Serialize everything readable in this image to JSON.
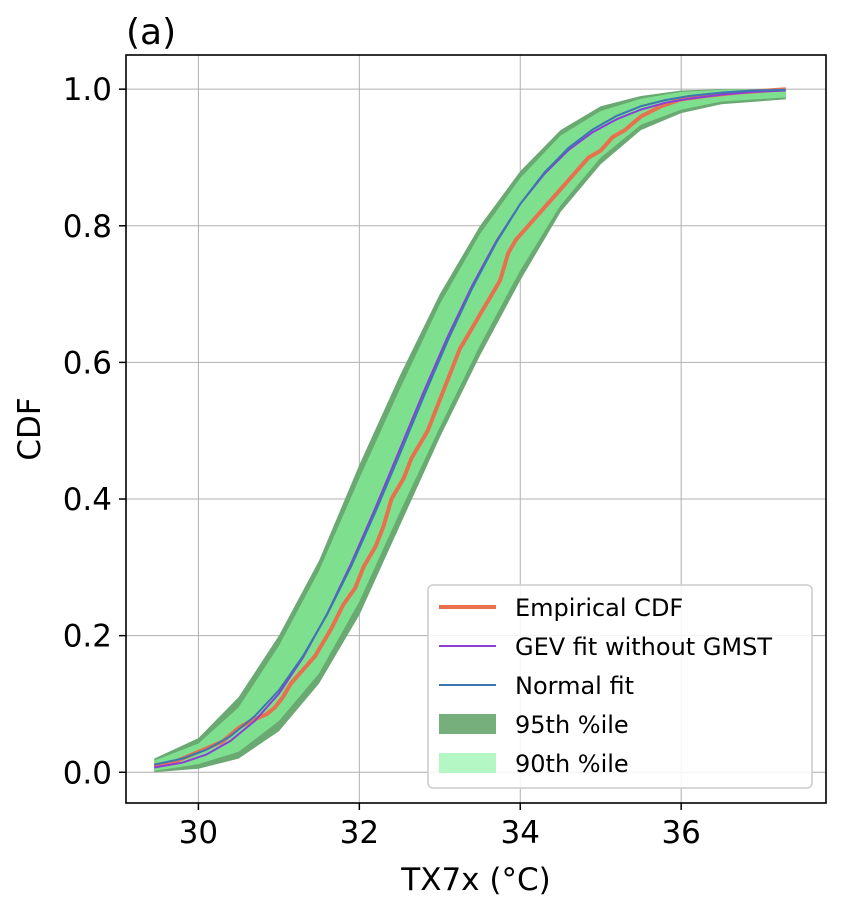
{
  "chart_data": {
    "type": "line",
    "panel_label": "(a)",
    "title": "",
    "xlabel": "TX7x (°C)",
    "ylabel": "CDF",
    "xlim": [
      29.1,
      37.8
    ],
    "ylim": [
      -0.045,
      1.05
    ],
    "xticks": [
      30,
      32,
      34,
      36
    ],
    "yticks": [
      0.0,
      0.2,
      0.4,
      0.6,
      0.8,
      1.0
    ],
    "grid": true,
    "legend_position": "lower-right",
    "colors": {
      "empirical": "#e8704f",
      "gev": "#8b3fd6",
      "normal": "#3a78b0",
      "band95": "#6aaa72",
      "band90": "#7ee08e",
      "legend95": "#76ae7c",
      "legend90": "#b4f7c4"
    },
    "series": [
      {
        "name": "Empirical CDF",
        "x": [
          29.45,
          29.7,
          30.0,
          30.3,
          30.5,
          30.65,
          30.85,
          30.95,
          31.05,
          31.15,
          31.3,
          31.45,
          31.55,
          31.65,
          31.8,
          31.95,
          32.05,
          32.2,
          32.3,
          32.4,
          32.55,
          32.65,
          32.75,
          32.85,
          32.95,
          33.05,
          33.15,
          33.25,
          33.35,
          33.45,
          33.55,
          33.65,
          33.75,
          33.85,
          33.95,
          34.1,
          34.25,
          34.4,
          34.55,
          34.7,
          34.85,
          35.0,
          35.15,
          35.3,
          35.5,
          35.75,
          36.0,
          36.3,
          36.7,
          37.3
        ],
        "y": [
          0.01,
          0.015,
          0.03,
          0.045,
          0.065,
          0.075,
          0.085,
          0.095,
          0.11,
          0.13,
          0.15,
          0.17,
          0.19,
          0.21,
          0.245,
          0.27,
          0.3,
          0.33,
          0.36,
          0.4,
          0.43,
          0.46,
          0.48,
          0.5,
          0.53,
          0.56,
          0.59,
          0.62,
          0.64,
          0.66,
          0.68,
          0.7,
          0.72,
          0.76,
          0.78,
          0.8,
          0.82,
          0.84,
          0.86,
          0.88,
          0.9,
          0.91,
          0.93,
          0.94,
          0.96,
          0.975,
          0.985,
          0.99,
          0.995,
          1.0
        ]
      },
      {
        "name": "GEV fit without GMST",
        "x": [
          29.45,
          29.8,
          30.1,
          30.4,
          30.7,
          31.0,
          31.3,
          31.6,
          31.9,
          32.2,
          32.5,
          32.8,
          33.1,
          33.4,
          33.7,
          34.0,
          34.3,
          34.6,
          34.9,
          35.2,
          35.5,
          35.8,
          36.1,
          36.5,
          36.9,
          37.3
        ],
        "y": [
          0.007,
          0.014,
          0.026,
          0.046,
          0.075,
          0.115,
          0.168,
          0.232,
          0.306,
          0.387,
          0.472,
          0.557,
          0.638,
          0.712,
          0.777,
          0.832,
          0.876,
          0.911,
          0.937,
          0.956,
          0.97,
          0.98,
          0.986,
          0.992,
          0.996,
          0.998
        ]
      },
      {
        "name": "Normal fit",
        "x": [
          29.45,
          29.8,
          30.1,
          30.4,
          30.7,
          31.0,
          31.3,
          31.6,
          31.9,
          32.2,
          32.5,
          32.8,
          33.1,
          33.4,
          33.7,
          34.0,
          34.3,
          34.6,
          34.9,
          35.2,
          35.5,
          35.8,
          36.1,
          36.5,
          36.9,
          37.3
        ],
        "y": [
          0.011,
          0.02,
          0.033,
          0.053,
          0.082,
          0.12,
          0.17,
          0.231,
          0.302,
          0.381,
          0.465,
          0.55,
          0.632,
          0.708,
          0.775,
          0.832,
          0.878,
          0.914,
          0.941,
          0.961,
          0.975,
          0.984,
          0.99,
          0.995,
          0.998,
          0.999
        ]
      },
      {
        "name": "95th %ile",
        "x": [
          29.45,
          30.0,
          30.5,
          31.0,
          31.5,
          32.0,
          32.5,
          33.0,
          33.5,
          34.0,
          34.5,
          35.0,
          35.5,
          36.0,
          36.5,
          37.3
        ],
        "y_low": [
          0.0,
          0.005,
          0.02,
          0.06,
          0.13,
          0.23,
          0.36,
          0.49,
          0.61,
          0.72,
          0.82,
          0.89,
          0.94,
          0.965,
          0.978,
          0.985
        ],
        "y_high": [
          0.02,
          0.05,
          0.11,
          0.2,
          0.31,
          0.45,
          0.58,
          0.7,
          0.8,
          0.88,
          0.94,
          0.975,
          0.99,
          0.998,
          1.0,
          1.0
        ]
      },
      {
        "name": "90th %ile",
        "x": [
          29.45,
          30.0,
          30.5,
          31.0,
          31.5,
          32.0,
          32.5,
          33.0,
          33.5,
          34.0,
          34.5,
          35.0,
          35.5,
          36.0,
          36.5,
          37.3
        ],
        "y_low": [
          0.002,
          0.012,
          0.03,
          0.075,
          0.145,
          0.25,
          0.38,
          0.505,
          0.625,
          0.735,
          0.83,
          0.9,
          0.948,
          0.97,
          0.982,
          0.988
        ],
        "y_high": [
          0.017,
          0.042,
          0.095,
          0.185,
          0.295,
          0.43,
          0.56,
          0.685,
          0.788,
          0.87,
          0.932,
          0.968,
          0.986,
          0.996,
          0.999,
          1.0
        ]
      }
    ]
  }
}
